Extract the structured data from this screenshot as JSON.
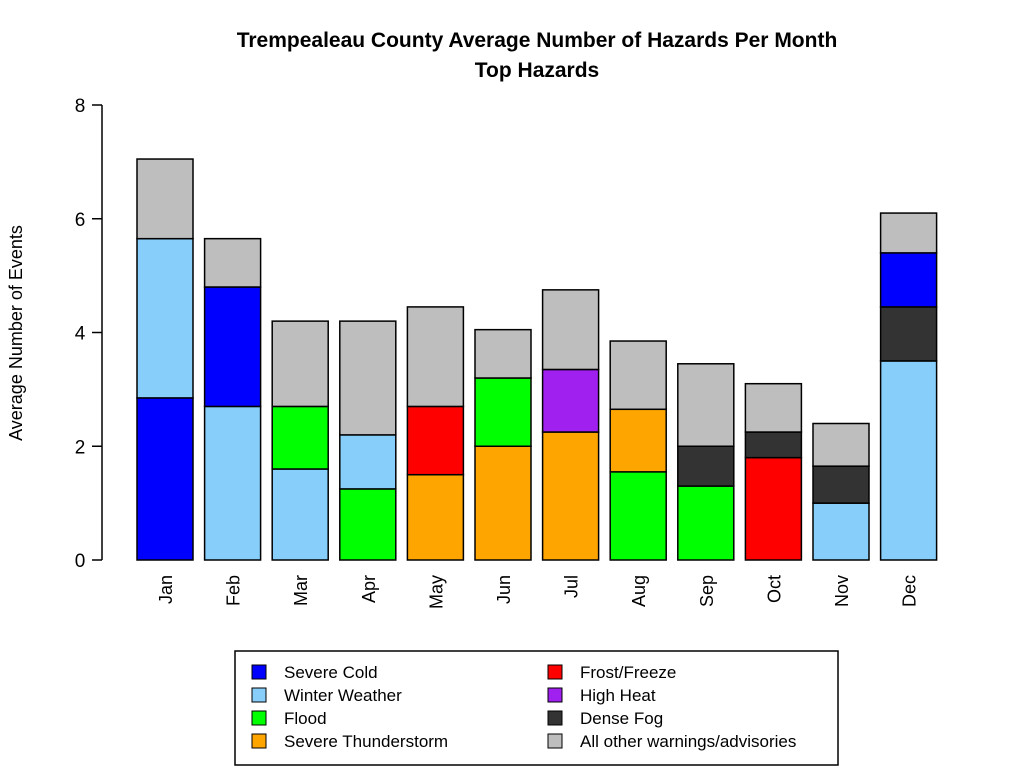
{
  "chart_data": {
    "type": "bar",
    "stacked": true,
    "title": "Trempealeau County Average Number of Hazards Per Month",
    "subtitle": "Top Hazards",
    "xlabel": "",
    "ylabel": "Average Number of Events",
    "ylim": [
      0,
      8
    ],
    "yticks": [
      "0",
      "2",
      "4",
      "6",
      "8"
    ],
    "categories": [
      "Jan",
      "Feb",
      "Mar",
      "Apr",
      "May",
      "Jun",
      "Jul",
      "Aug",
      "Sep",
      "Oct",
      "Nov",
      "Dec"
    ],
    "colors": {
      "Severe Cold": "#0000ff",
      "Winter Weather": "#87cefa",
      "Flood": "#00ff00",
      "Severe Thunderstorm": "#ffa500",
      "Frost/Freeze": "#ff0000",
      "High Heat": "#a020f0",
      "Dense Fog": "#333333",
      "All other warnings/advisories": "#bebebe"
    },
    "stacks": [
      [
        [
          "Severe Cold",
          2.85
        ],
        [
          "Winter Weather",
          2.8
        ],
        [
          "All other warnings/advisories",
          1.4
        ]
      ],
      [
        [
          "Winter Weather",
          2.7
        ],
        [
          "Severe Cold",
          2.1
        ],
        [
          "All other warnings/advisories",
          0.85
        ]
      ],
      [
        [
          "Winter Weather",
          1.6
        ],
        [
          "Flood",
          1.1
        ],
        [
          "All other warnings/advisories",
          1.5
        ]
      ],
      [
        [
          "Flood",
          1.25
        ],
        [
          "Winter Weather",
          0.95
        ],
        [
          "All other warnings/advisories",
          2.0
        ]
      ],
      [
        [
          "Severe Thunderstorm",
          1.5
        ],
        [
          "Frost/Freeze",
          1.2
        ],
        [
          "All other warnings/advisories",
          1.75
        ]
      ],
      [
        [
          "Severe Thunderstorm",
          2.0
        ],
        [
          "Flood",
          1.2
        ],
        [
          "All other warnings/advisories",
          0.85
        ]
      ],
      [
        [
          "Severe Thunderstorm",
          2.25
        ],
        [
          "High Heat",
          1.1
        ],
        [
          "All other warnings/advisories",
          1.4
        ]
      ],
      [
        [
          "Flood",
          1.55
        ],
        [
          "Severe Thunderstorm",
          1.1
        ],
        [
          "All other warnings/advisories",
          1.2
        ]
      ],
      [
        [
          "Flood",
          1.3
        ],
        [
          "Dense Fog",
          0.7
        ],
        [
          "All other warnings/advisories",
          1.45
        ]
      ],
      [
        [
          "Frost/Freeze",
          1.8
        ],
        [
          "Dense Fog",
          0.45
        ],
        [
          "All other warnings/advisories",
          0.85
        ]
      ],
      [
        [
          "Winter Weather",
          1.0
        ],
        [
          "Dense Fog",
          0.65
        ],
        [
          "All other warnings/advisories",
          0.75
        ]
      ],
      [
        [
          "Winter Weather",
          3.5
        ],
        [
          "Dense Fog",
          0.95
        ],
        [
          "Severe Cold",
          0.95
        ],
        [
          "All other warnings/advisories",
          0.7
        ]
      ]
    ],
    "legend": {
      "position": "bottom",
      "entries": [
        "Severe Cold",
        "Winter Weather",
        "Flood",
        "Severe Thunderstorm",
        "Frost/Freeze",
        "High Heat",
        "Dense Fog",
        "All other warnings/advisories"
      ]
    }
  }
}
